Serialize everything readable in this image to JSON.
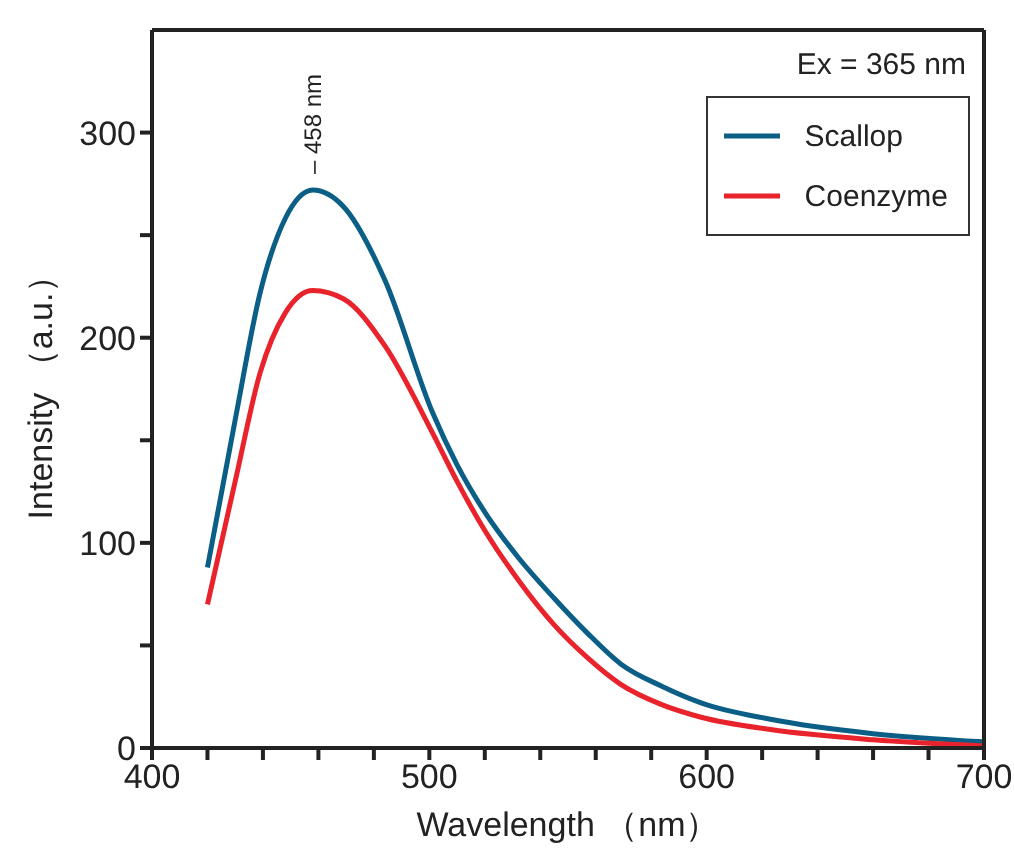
{
  "chart_data": {
    "type": "line",
    "xlabel": "Wavelength （nm）",
    "ylabel": "Intensity （a.u.）",
    "x": [
      420,
      430,
      439,
      448,
      458,
      469,
      484,
      501,
      510,
      520,
      532,
      545,
      557,
      569,
      584,
      598,
      623,
      660,
      700
    ],
    "series": [
      {
        "name": "Scallop",
        "color": "#0b5f87",
        "values": [
          88,
          160,
          222,
          258,
          272,
          264,
          228,
          164,
          138,
          115,
          93,
          73,
          56,
          41,
          30,
          22,
          14,
          7,
          3
        ]
      },
      {
        "name": "Coenzyme",
        "color": "#e8232b",
        "values": [
          70,
          130,
          183,
          212,
          223,
          219,
          196,
          154,
          130,
          106,
          82,
          60,
          44,
          31,
          21,
          15,
          9,
          4,
          1
        ]
      }
    ],
    "xlim": [
      400,
      700
    ],
    "xticks": [
      400,
      {
        "value": 420,
        "label": null
      },
      {
        "value": 440,
        "label": null
      },
      {
        "value": 460,
        "label": null
      },
      {
        "value": 480,
        "label": null
      },
      500,
      {
        "value": 520,
        "label": null
      },
      {
        "value": 540,
        "label": null
      },
      {
        "value": 560,
        "label": null
      },
      {
        "value": 580,
        "label": null
      },
      600,
      {
        "value": 620,
        "label": null
      },
      {
        "value": 640,
        "label": null
      },
      {
        "value": 660,
        "label": null
      },
      {
        "value": 680,
        "label": null
      },
      700
    ],
    "ylim": [
      0,
      350
    ],
    "yticks": [
      0,
      {
        "value": 50,
        "label": null
      },
      100,
      {
        "value": 150,
        "label": null
      },
      200,
      {
        "value": 250,
        "label": null
      },
      300
    ],
    "annotations": [
      {
        "text": "– 458 nm",
        "x": 458,
        "y": 272
      },
      "Ex = 365 nm"
    ],
    "legend": "top right",
    "marker": "none",
    "line_style": "solid"
  }
}
